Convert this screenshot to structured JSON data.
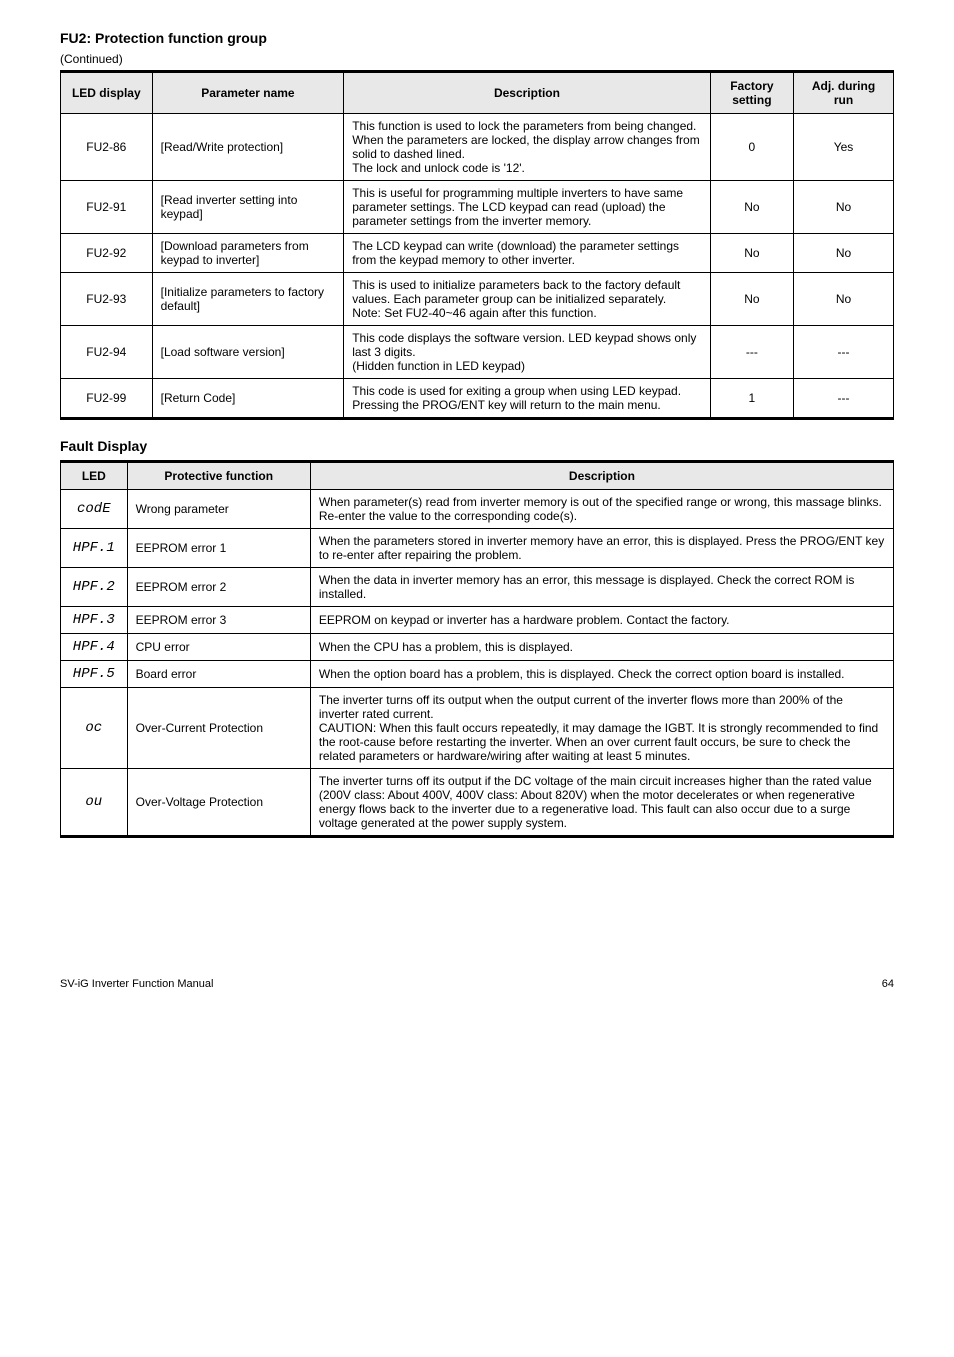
{
  "table1": {
    "section_title": "FU2: Protection function group",
    "caption": "(Continued)",
    "columns": [
      "LED display",
      "Parameter name",
      "Description",
      "Factory setting",
      "Adj. during run"
    ],
    "col_widths_pct": [
      11,
      23,
      44,
      10,
      12
    ],
    "header_bg": "#e8e8e8",
    "border_color": "#000000",
    "rows": [
      {
        "c1": "FU2-86",
        "c2": "[Read/Write protection]",
        "c3": "This function is used to lock the parameters from being changed. When the parameters are locked, the display arrow changes from solid to dashed lined.\nThe lock and unlock code is '12'.",
        "c4": "0",
        "c5": "Yes"
      },
      {
        "c1": "FU2-91",
        "c2": "[Read inverter setting into keypad]",
        "c3": "This is useful for programming multiple inverters to have same parameter settings. The LCD keypad can read (upload) the parameter settings from the inverter memory.",
        "c4": "No",
        "c5": "No"
      },
      {
        "c1": "FU2-92",
        "c2": "[Download parameters from keypad to inverter]",
        "c3": "The LCD keypad can write (download) the parameter settings from the keypad memory to other inverter.",
        "c4": "No",
        "c5": "No"
      },
      {
        "c1": "FU2-93",
        "c2": "[Initialize parameters to factory default]",
        "c3": "This is used to initialize parameters back to the factory default values. Each parameter group can be initialized separately.\nNote: Set FU2-40~46 again after this function.",
        "c4": "No",
        "c5": "No"
      },
      {
        "c1": "FU2-94",
        "c2": "[Load software version]",
        "c3": "This code displays the software version. LED keypad shows only last 3 digits.\n(Hidden function in LED keypad)",
        "c4": "---",
        "c5": "---"
      },
      {
        "c1": "FU2-99",
        "c2": "[Return Code]",
        "c3": "This code is used for exiting a group when using LED keypad.\nPressing the PROG/ENT key will return to the main menu.",
        "c4": "1",
        "c5": "---"
      }
    ]
  },
  "table2": {
    "section_title": "Fault Display",
    "caption": "",
    "columns": [
      "LED",
      "Protective function",
      "Description"
    ],
    "col_widths_pct": [
      8,
      22,
      70
    ],
    "header_bg": "#e8e8e8",
    "border_color": "#000000",
    "rows": [
      {
        "code": "codE",
        "name": "Wrong parameter",
        "desc": "When parameter(s) read from inverter memory is out of the specified range or wrong, this massage blinks. Re-enter the value to the corresponding code(s)."
      },
      {
        "code": "HPF.1",
        "name": "EEPROM error 1",
        "desc": "When the parameters stored in inverter memory have an error, this is displayed. Press the PROG/ENT key to re-enter after repairing the problem."
      },
      {
        "code": "HPF.2",
        "name": "EEPROM error 2",
        "desc": "When the data in inverter memory has an error, this message is displayed. Check the correct ROM is installed."
      },
      {
        "code": "HPF.3",
        "name": "EEPROM error 3",
        "desc": "EEPROM on keypad or inverter has a hardware problem. Contact the factory."
      },
      {
        "code": "HPF.4",
        "name": "CPU error",
        "desc": "When the CPU has a problem, this is displayed."
      },
      {
        "code": "HPF.5",
        "name": "Board error",
        "desc": "When the option board has a problem, this is displayed. Check the correct option board is installed."
      },
      {
        "code": "oc",
        "name": "Over-Current Protection",
        "desc": "The inverter turns off its output when the output current of the inverter flows more than 200% of the inverter rated current.\nCAUTION: When this fault occurs repeatedly, it may damage the IGBT. It is strongly recommended to find the root-cause before restarting the inverter. When an over current fault occurs, be sure to check the related parameters or hardware/wiring after waiting at least 5 minutes."
      },
      {
        "code": "ou",
        "name": "Over-Voltage Protection",
        "desc": "The inverter turns off its output if the DC voltage of the main circuit increases higher than the rated value (200V class: About 400V, 400V class: About 820V) when the motor decelerates or when regenerative energy flows back to the inverter due to a regenerative load. This fault can also occur due to a surge voltage generated at the power supply system."
      }
    ]
  },
  "footer": {
    "product": "SV-iG Inverter Function Manual",
    "page": "64"
  }
}
